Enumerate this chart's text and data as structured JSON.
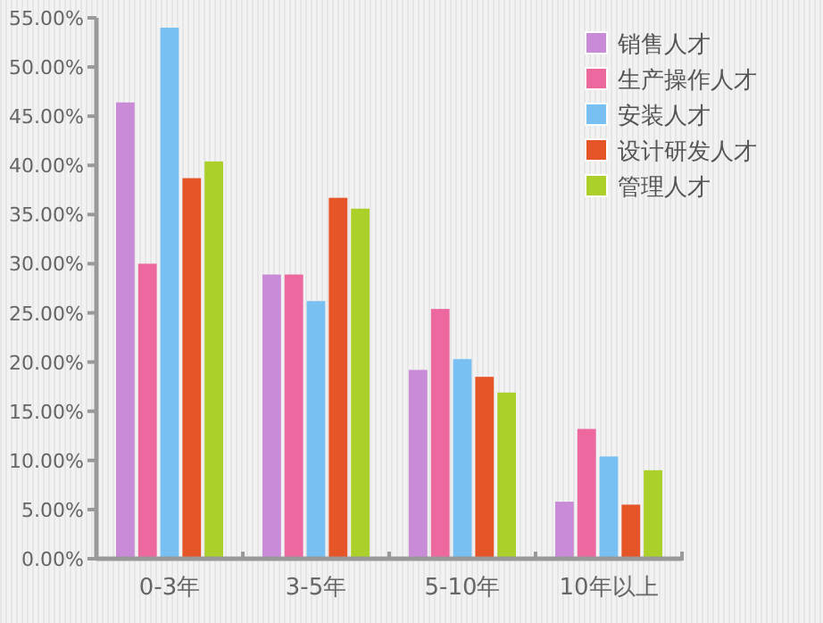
{
  "chart_data": {
    "type": "bar",
    "categories": [
      "0-3年",
      "3-5年",
      "5-10年",
      "10年以上"
    ],
    "series": [
      {
        "name": "销售人才",
        "color": "#c98bd8",
        "values": [
          46.4,
          28.9,
          19.2,
          5.8
        ]
      },
      {
        "name": "生产操作人才",
        "color": "#ec689e",
        "values": [
          30.0,
          28.9,
          25.4,
          13.2
        ]
      },
      {
        "name": "安装人才",
        "color": "#78c0f2",
        "values": [
          54.0,
          26.2,
          20.3,
          10.4
        ]
      },
      {
        "name": "设计研发人才",
        "color": "#e55527",
        "values": [
          38.7,
          36.7,
          18.5,
          5.5
        ]
      },
      {
        "name": "管理人才",
        "color": "#abd02a",
        "values": [
          40.4,
          35.6,
          16.9,
          9.0
        ]
      }
    ],
    "ylim": [
      0,
      55
    ],
    "yticks": [
      {
        "value": 0,
        "label": "0.00%"
      },
      {
        "value": 5,
        "label": "5.00%"
      },
      {
        "value": 10,
        "label": "10.00%"
      },
      {
        "value": 15,
        "label": "15.00%"
      },
      {
        "value": 20,
        "label": "20.00%"
      },
      {
        "value": 25,
        "label": "25.00%"
      },
      {
        "value": 30,
        "label": "30.00%"
      },
      {
        "value": 35,
        "label": "35.00%"
      },
      {
        "value": 40,
        "label": "40.00%"
      },
      {
        "value": 45,
        "label": "45.00%"
      },
      {
        "value": 50,
        "label": "50.00%"
      },
      {
        "value": 55,
        "label": "55.00%"
      }
    ],
    "grid": false,
    "legend": "top right"
  }
}
